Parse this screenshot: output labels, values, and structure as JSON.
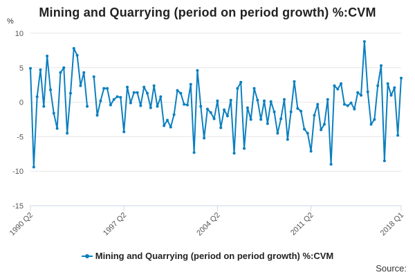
{
  "colors": {
    "series": "#0b7fbf",
    "grid": "#e6e6e6",
    "axis": "#ccd6eb"
  },
  "chart_data": {
    "type": "line",
    "title": "Mining and Quarrying (period on period growth) %:CVM",
    "xlabel": "",
    "ylabel": "%",
    "ylim": [
      -15,
      10
    ],
    "yticks": [
      10,
      5,
      0,
      -5,
      -10,
      -15
    ],
    "x_tick_labels": [
      "1990 Q2",
      "1997 Q2",
      "2004 Q2",
      "2011 Q2",
      "2018 Q1"
    ],
    "x_tick_indices": [
      0,
      28,
      56,
      84,
      111
    ],
    "grid": true,
    "legend": "bottom-center",
    "series": [
      {
        "name": "Mining and Quarrying (period on period growth) %:CVM",
        "values": [
          4.9,
          -9.4,
          0.8,
          4.7,
          -0.6,
          6.7,
          1.8,
          -1.6,
          -3.8,
          4.3,
          5.0,
          -4.5,
          1.3,
          7.8,
          6.8,
          2.4,
          4.3,
          -0.6,
          null,
          3.7,
          -1.9,
          0.2,
          2.0,
          2.0,
          -0.4,
          0.4,
          0.8,
          0.7,
          -4.3,
          2.2,
          -0.1,
          1.4,
          1.4,
          -0.5,
          2.2,
          1.3,
          -0.8,
          2.4,
          -0.6,
          0.8,
          -3.4,
          -2.6,
          -3.6,
          -1.8,
          1.7,
          1.3,
          -0.3,
          -0.4,
          2.6,
          -7.3,
          4.6,
          -0.6,
          -5.2,
          -1.0,
          -1.5,
          -2.4,
          0.2,
          -3.7,
          -1.1,
          -2.0,
          0.3,
          -7.4,
          2.0,
          2.9,
          -6.7,
          -0.8,
          -2.5,
          2.0,
          0.3,
          -2.5,
          0.2,
          -3.1,
          0.1,
          -1.4,
          -4.5,
          -2.4,
          0.4,
          -5.4,
          -1.4,
          3.0,
          -0.9,
          -1.3,
          -3.9,
          -4.5,
          -7.1,
          -1.9,
          -0.3,
          -4.0,
          -3.2,
          0.4,
          -9.0,
          2.4,
          1.9,
          2.7,
          -0.3,
          -0.5,
          -0.1,
          -1.0,
          1.4,
          1.0,
          8.8,
          1.5,
          -3.2,
          -2.5,
          2.4,
          5.3,
          -8.5,
          2.7,
          1.0,
          2.1,
          -4.8,
          3.5
        ]
      }
    ]
  },
  "legend": {
    "label": "Mining and Quarrying (period on period growth) %:CVM"
  },
  "source": {
    "label": "Source:"
  }
}
